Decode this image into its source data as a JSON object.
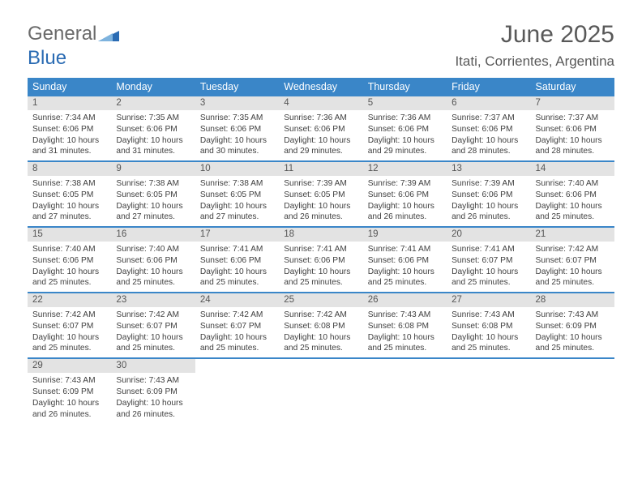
{
  "logo": {
    "text1": "General",
    "text2": "Blue"
  },
  "title": "June 2025",
  "location": "Itati, Corrientes, Argentina",
  "colors": {
    "header_bg": "#3a86c8",
    "daynum_bg": "#e3e3e3",
    "week_border": "#3a86c8",
    "title_color": "#595959"
  },
  "week_headers": [
    "Sunday",
    "Monday",
    "Tuesday",
    "Wednesday",
    "Thursday",
    "Friday",
    "Saturday"
  ],
  "weeks": [
    [
      {
        "n": "1",
        "sunrise": "Sunrise: 7:34 AM",
        "sunset": "Sunset: 6:06 PM",
        "daylight1": "Daylight: 10 hours",
        "daylight2": "and 31 minutes."
      },
      {
        "n": "2",
        "sunrise": "Sunrise: 7:35 AM",
        "sunset": "Sunset: 6:06 PM",
        "daylight1": "Daylight: 10 hours",
        "daylight2": "and 31 minutes."
      },
      {
        "n": "3",
        "sunrise": "Sunrise: 7:35 AM",
        "sunset": "Sunset: 6:06 PM",
        "daylight1": "Daylight: 10 hours",
        "daylight2": "and 30 minutes."
      },
      {
        "n": "4",
        "sunrise": "Sunrise: 7:36 AM",
        "sunset": "Sunset: 6:06 PM",
        "daylight1": "Daylight: 10 hours",
        "daylight2": "and 29 minutes."
      },
      {
        "n": "5",
        "sunrise": "Sunrise: 7:36 AM",
        "sunset": "Sunset: 6:06 PM",
        "daylight1": "Daylight: 10 hours",
        "daylight2": "and 29 minutes."
      },
      {
        "n": "6",
        "sunrise": "Sunrise: 7:37 AM",
        "sunset": "Sunset: 6:06 PM",
        "daylight1": "Daylight: 10 hours",
        "daylight2": "and 28 minutes."
      },
      {
        "n": "7",
        "sunrise": "Sunrise: 7:37 AM",
        "sunset": "Sunset: 6:06 PM",
        "daylight1": "Daylight: 10 hours",
        "daylight2": "and 28 minutes."
      }
    ],
    [
      {
        "n": "8",
        "sunrise": "Sunrise: 7:38 AM",
        "sunset": "Sunset: 6:05 PM",
        "daylight1": "Daylight: 10 hours",
        "daylight2": "and 27 minutes."
      },
      {
        "n": "9",
        "sunrise": "Sunrise: 7:38 AM",
        "sunset": "Sunset: 6:05 PM",
        "daylight1": "Daylight: 10 hours",
        "daylight2": "and 27 minutes."
      },
      {
        "n": "10",
        "sunrise": "Sunrise: 7:38 AM",
        "sunset": "Sunset: 6:05 PM",
        "daylight1": "Daylight: 10 hours",
        "daylight2": "and 27 minutes."
      },
      {
        "n": "11",
        "sunrise": "Sunrise: 7:39 AM",
        "sunset": "Sunset: 6:05 PM",
        "daylight1": "Daylight: 10 hours",
        "daylight2": "and 26 minutes."
      },
      {
        "n": "12",
        "sunrise": "Sunrise: 7:39 AM",
        "sunset": "Sunset: 6:06 PM",
        "daylight1": "Daylight: 10 hours",
        "daylight2": "and 26 minutes."
      },
      {
        "n": "13",
        "sunrise": "Sunrise: 7:39 AM",
        "sunset": "Sunset: 6:06 PM",
        "daylight1": "Daylight: 10 hours",
        "daylight2": "and 26 minutes."
      },
      {
        "n": "14",
        "sunrise": "Sunrise: 7:40 AM",
        "sunset": "Sunset: 6:06 PM",
        "daylight1": "Daylight: 10 hours",
        "daylight2": "and 25 minutes."
      }
    ],
    [
      {
        "n": "15",
        "sunrise": "Sunrise: 7:40 AM",
        "sunset": "Sunset: 6:06 PM",
        "daylight1": "Daylight: 10 hours",
        "daylight2": "and 25 minutes."
      },
      {
        "n": "16",
        "sunrise": "Sunrise: 7:40 AM",
        "sunset": "Sunset: 6:06 PM",
        "daylight1": "Daylight: 10 hours",
        "daylight2": "and 25 minutes."
      },
      {
        "n": "17",
        "sunrise": "Sunrise: 7:41 AM",
        "sunset": "Sunset: 6:06 PM",
        "daylight1": "Daylight: 10 hours",
        "daylight2": "and 25 minutes."
      },
      {
        "n": "18",
        "sunrise": "Sunrise: 7:41 AM",
        "sunset": "Sunset: 6:06 PM",
        "daylight1": "Daylight: 10 hours",
        "daylight2": "and 25 minutes."
      },
      {
        "n": "19",
        "sunrise": "Sunrise: 7:41 AM",
        "sunset": "Sunset: 6:06 PM",
        "daylight1": "Daylight: 10 hours",
        "daylight2": "and 25 minutes."
      },
      {
        "n": "20",
        "sunrise": "Sunrise: 7:41 AM",
        "sunset": "Sunset: 6:07 PM",
        "daylight1": "Daylight: 10 hours",
        "daylight2": "and 25 minutes."
      },
      {
        "n": "21",
        "sunrise": "Sunrise: 7:42 AM",
        "sunset": "Sunset: 6:07 PM",
        "daylight1": "Daylight: 10 hours",
        "daylight2": "and 25 minutes."
      }
    ],
    [
      {
        "n": "22",
        "sunrise": "Sunrise: 7:42 AM",
        "sunset": "Sunset: 6:07 PM",
        "daylight1": "Daylight: 10 hours",
        "daylight2": "and 25 minutes."
      },
      {
        "n": "23",
        "sunrise": "Sunrise: 7:42 AM",
        "sunset": "Sunset: 6:07 PM",
        "daylight1": "Daylight: 10 hours",
        "daylight2": "and 25 minutes."
      },
      {
        "n": "24",
        "sunrise": "Sunrise: 7:42 AM",
        "sunset": "Sunset: 6:07 PM",
        "daylight1": "Daylight: 10 hours",
        "daylight2": "and 25 minutes."
      },
      {
        "n": "25",
        "sunrise": "Sunrise: 7:42 AM",
        "sunset": "Sunset: 6:08 PM",
        "daylight1": "Daylight: 10 hours",
        "daylight2": "and 25 minutes."
      },
      {
        "n": "26",
        "sunrise": "Sunrise: 7:43 AM",
        "sunset": "Sunset: 6:08 PM",
        "daylight1": "Daylight: 10 hours",
        "daylight2": "and 25 minutes."
      },
      {
        "n": "27",
        "sunrise": "Sunrise: 7:43 AM",
        "sunset": "Sunset: 6:08 PM",
        "daylight1": "Daylight: 10 hours",
        "daylight2": "and 25 minutes."
      },
      {
        "n": "28",
        "sunrise": "Sunrise: 7:43 AM",
        "sunset": "Sunset: 6:09 PM",
        "daylight1": "Daylight: 10 hours",
        "daylight2": "and 25 minutes."
      }
    ],
    [
      {
        "n": "29",
        "sunrise": "Sunrise: 7:43 AM",
        "sunset": "Sunset: 6:09 PM",
        "daylight1": "Daylight: 10 hours",
        "daylight2": "and 26 minutes."
      },
      {
        "n": "30",
        "sunrise": "Sunrise: 7:43 AM",
        "sunset": "Sunset: 6:09 PM",
        "daylight1": "Daylight: 10 hours",
        "daylight2": "and 26 minutes."
      },
      {
        "empty": true
      },
      {
        "empty": true
      },
      {
        "empty": true
      },
      {
        "empty": true
      },
      {
        "empty": true
      }
    ]
  ]
}
